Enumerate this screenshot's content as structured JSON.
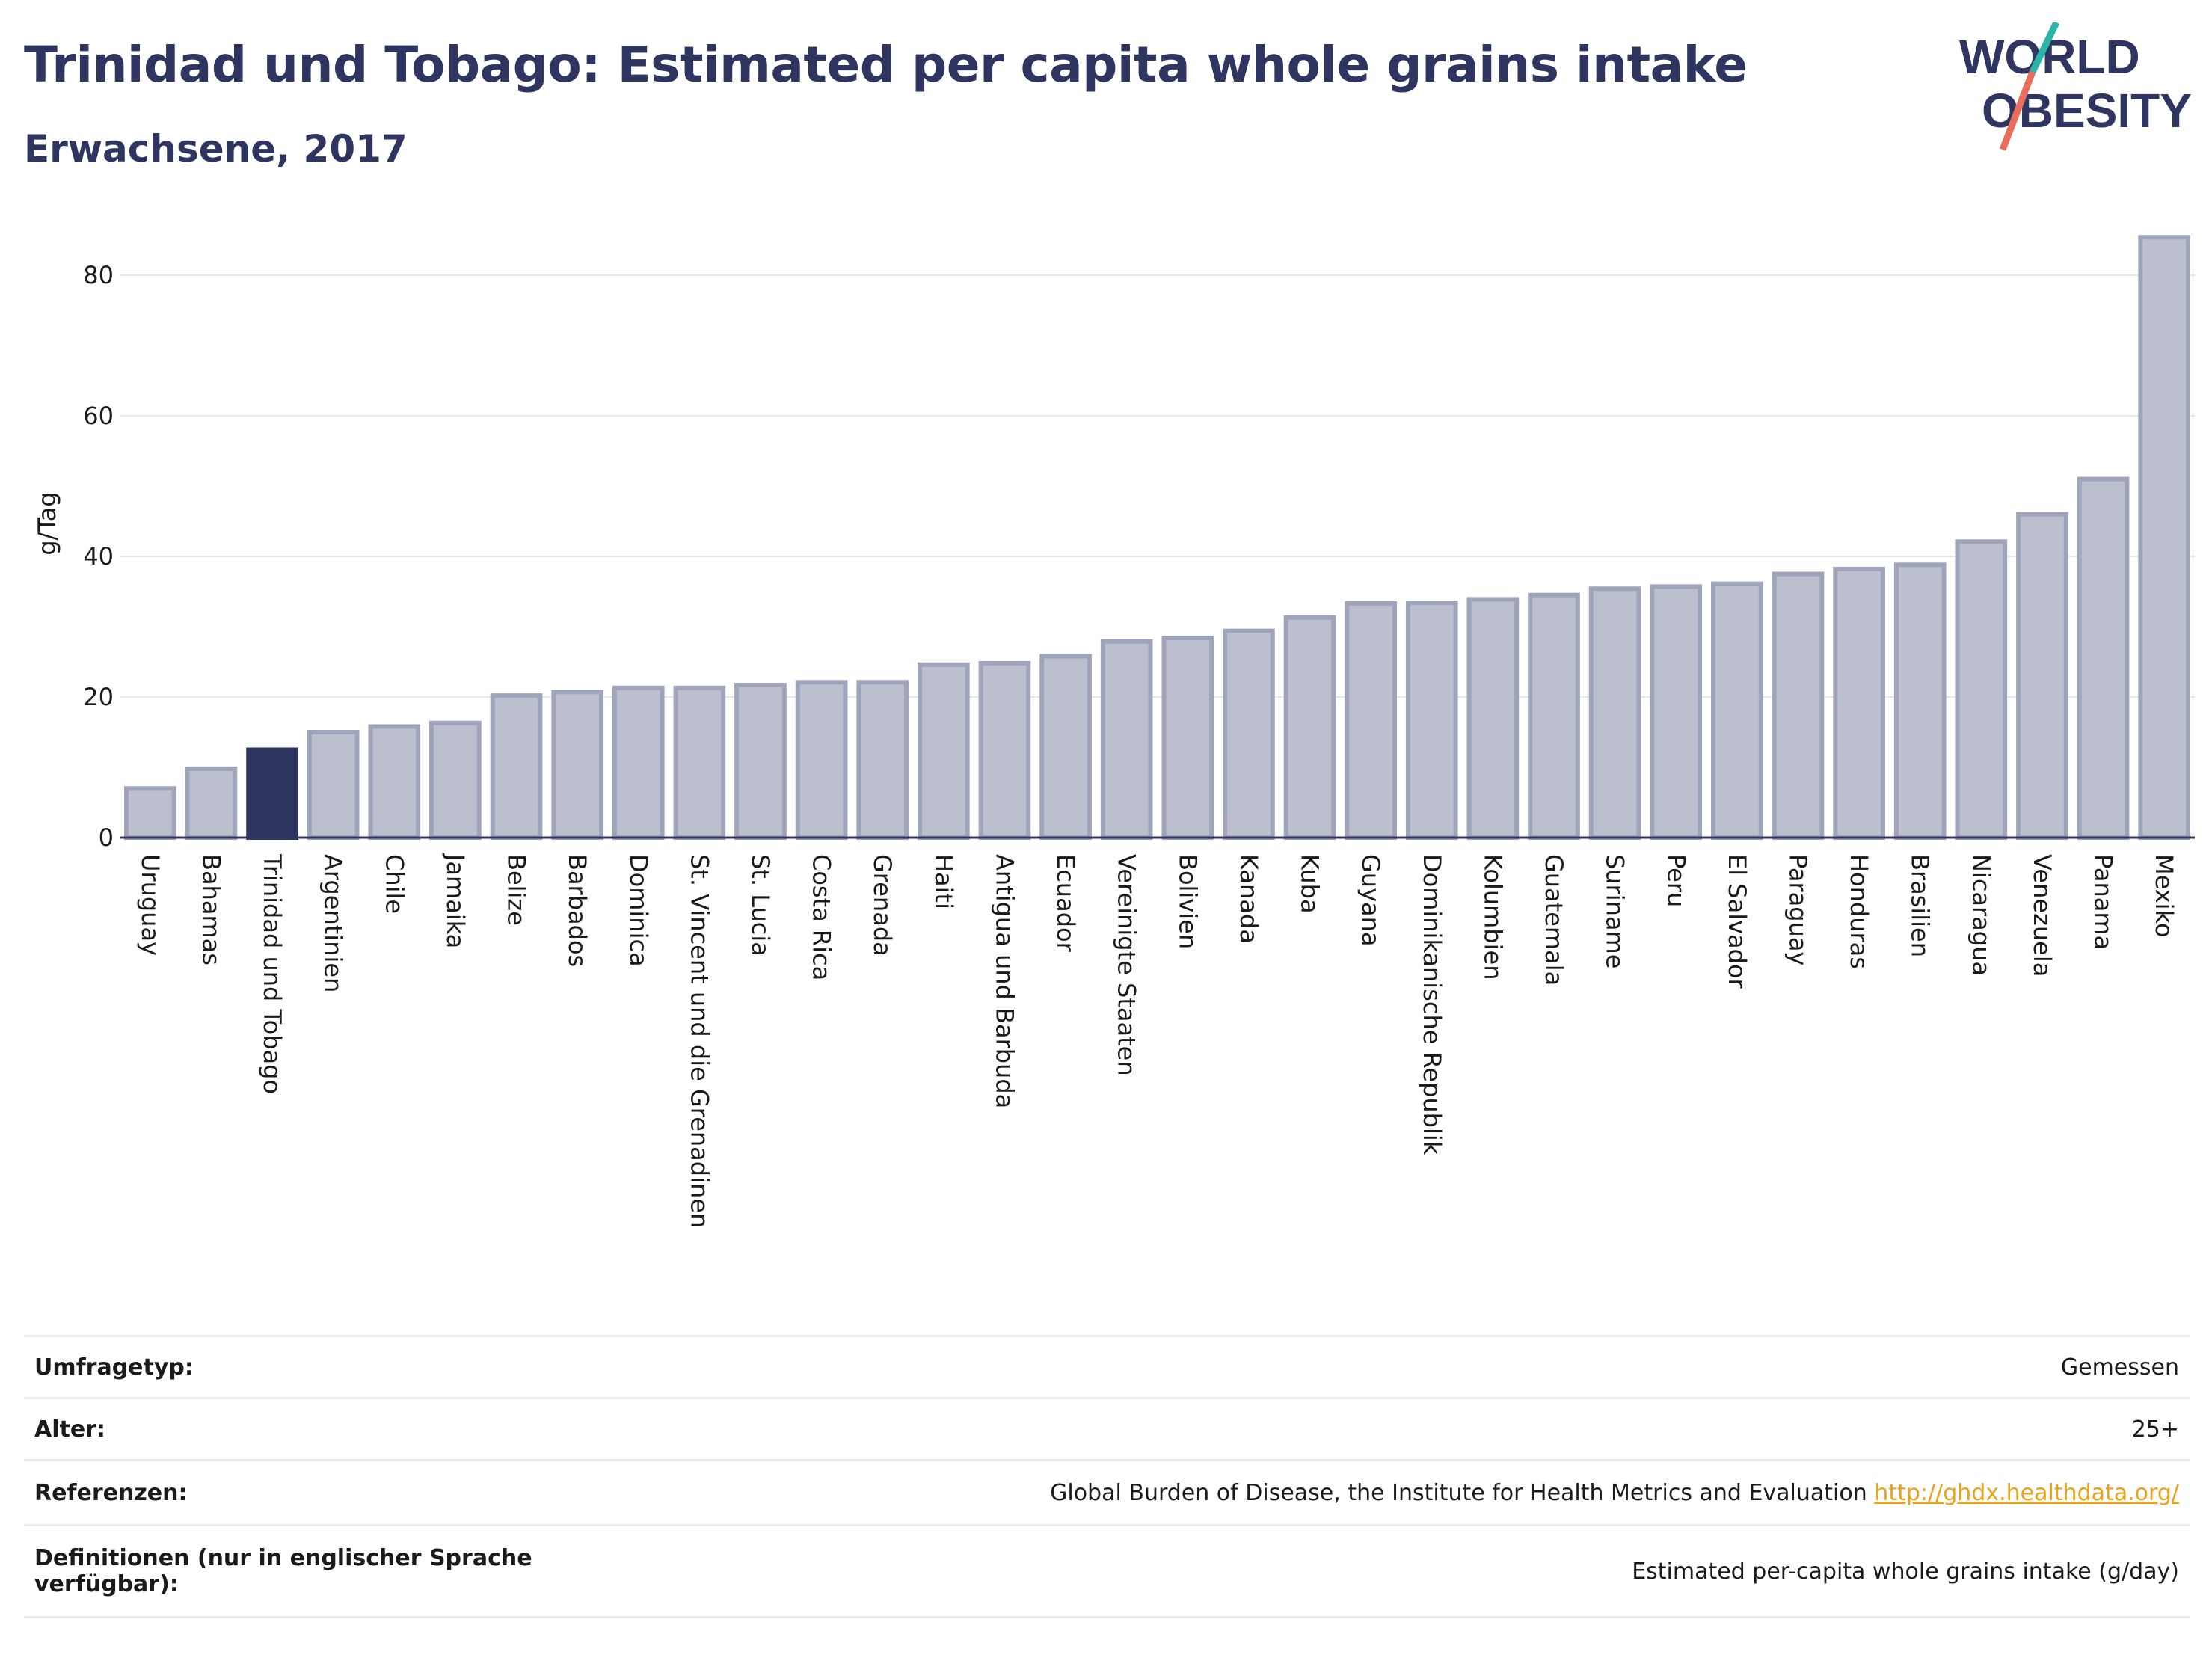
{
  "header": {
    "title": "Trinidad und Tobago: Estimated per capita whole grains intake",
    "subtitle": "Erwachsene, 2017"
  },
  "logo": {
    "line1": "WORLD",
    "line2": "OBESITY"
  },
  "colors": {
    "highlight_bar": "#2d3560",
    "bar_fill": "#bcc0ce",
    "bar_stroke": "#9ea4ba",
    "text_dark": "#2d3560",
    "link": "#e8a21b"
  },
  "chart_data": {
    "type": "bar",
    "ylabel": "g/Tag",
    "ylim": [
      0,
      88
    ],
    "yticks": [
      0,
      20,
      40,
      60,
      80
    ],
    "grid": true,
    "highlight": "Trinidad und Tobago",
    "categories": [
      "Uruguay",
      "Bahamas",
      "Trinidad und Tobago",
      "Argentinien",
      "Chile",
      "Jamaika",
      "Belize",
      "Barbados",
      "Dominica",
      "St. Vincent und die Grenadinen",
      "St. Lucia",
      "Costa Rica",
      "Grenada",
      "Haiti",
      "Antigua und Barbuda",
      "Ecuador",
      "Vereinigte Staaten",
      "Bolivien",
      "Kanada",
      "Kuba",
      "Guyana",
      "Dominikanische Republik",
      "Kolumbien",
      "Guatemala",
      "Suriname",
      "Peru",
      "El Salvador",
      "Paraguay",
      "Honduras",
      "Brasilien",
      "Nicaragua",
      "Venezuela",
      "Panama",
      "Mexiko"
    ],
    "values": [
      7.0,
      9.8,
      12.5,
      15.0,
      15.8,
      16.3,
      20.2,
      20.7,
      21.3,
      21.3,
      21.7,
      22.1,
      22.1,
      24.6,
      24.8,
      25.8,
      27.9,
      28.4,
      29.4,
      31.3,
      33.3,
      33.4,
      33.9,
      34.5,
      35.4,
      35.7,
      36.1,
      37.5,
      38.2,
      38.8,
      42.1,
      46.0,
      51.0,
      85.4
    ]
  },
  "info": {
    "rows": [
      {
        "label": "Umfragetyp:",
        "value": "Gemessen"
      },
      {
        "label": "Alter:",
        "value": "25+"
      },
      {
        "label": "Referenzen:",
        "value": "Global Burden of Disease, the Institute for Health Metrics and Evaluation",
        "link": "http://ghdx.healthdata.org/"
      },
      {
        "label": "Definitionen (nur in englischer Sprache verfügbar):",
        "value": "Estimated per-capita whole grains intake (g/day)"
      }
    ]
  }
}
